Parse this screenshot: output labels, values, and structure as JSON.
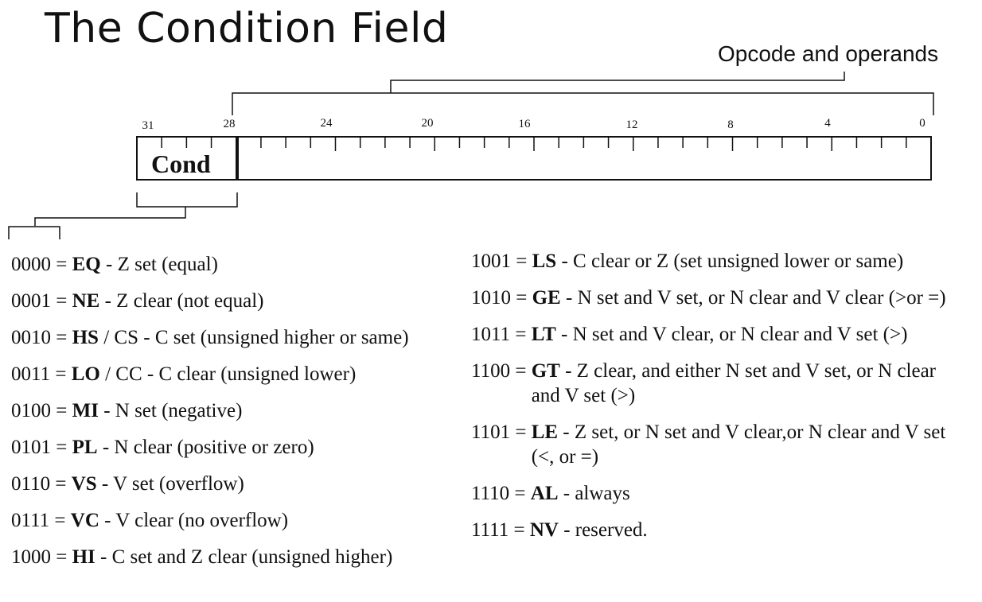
{
  "title": "The Condition Field",
  "diagram": {
    "opcode_label": "Opcode and operands",
    "cond_label": "Cond",
    "bit_labels": [
      "31",
      "28",
      "24",
      "20",
      "16",
      "12",
      "8",
      "4",
      "0"
    ]
  },
  "conditions_left": [
    {
      "code": "0000",
      "mnemonic": "EQ",
      "alt": "",
      "desc": "Z set (equal)"
    },
    {
      "code": "0001",
      "mnemonic": "NE",
      "alt": "",
      "desc": "Z clear (not equal)"
    },
    {
      "code": "0010",
      "mnemonic": "HS",
      "alt": "CS",
      "desc": "C set (unsigned higher or same)"
    },
    {
      "code": "0011",
      "mnemonic": "LO",
      "alt": "CC",
      "desc": "C clear (unsigned lower)"
    },
    {
      "code": "0100",
      "mnemonic": "MI",
      "alt": "",
      "desc": "N set (negative)"
    },
    {
      "code": "0101",
      "mnemonic": "PL",
      "alt": "",
      "desc": "N clear (positive or zero)"
    },
    {
      "code": "0110",
      "mnemonic": "VS",
      "alt": "",
      "desc": "V  set (overflow)"
    },
    {
      "code": "0111",
      "mnemonic": "VC",
      "alt": "",
      "desc": "V clear (no overflow)"
    },
    {
      "code": "1000",
      "mnemonic": "HI",
      "alt": "",
      "desc": "C set and Z clear (unsigned higher)"
    }
  ],
  "conditions_right": [
    {
      "code": "1001",
      "mnemonic": "LS",
      "alt": "",
      "desc": "C clear or Z (set unsigned lower or same)"
    },
    {
      "code": "1010",
      "mnemonic": "GE",
      "alt": "",
      "desc": "N set and V set, or N clear and V clear (>or =)"
    },
    {
      "code": "1011",
      "mnemonic": "LT",
      "alt": "",
      "desc": "N set and V clear, or N clear and V set (>)"
    },
    {
      "code": "1100",
      "mnemonic": "GT",
      "alt": "",
      "desc": "Z clear, and either N set and V set, or N clear and V set (>)"
    },
    {
      "code": "1101",
      "mnemonic": "LE",
      "alt": "",
      "desc": "Z set, or N set and V clear,or N clear and V set (<, or =)"
    },
    {
      "code": "1110",
      "mnemonic": "AL",
      "alt": "",
      "desc": "always"
    },
    {
      "code": "1111",
      "mnemonic": "NV",
      "alt": "",
      "desc": "reserved."
    }
  ]
}
